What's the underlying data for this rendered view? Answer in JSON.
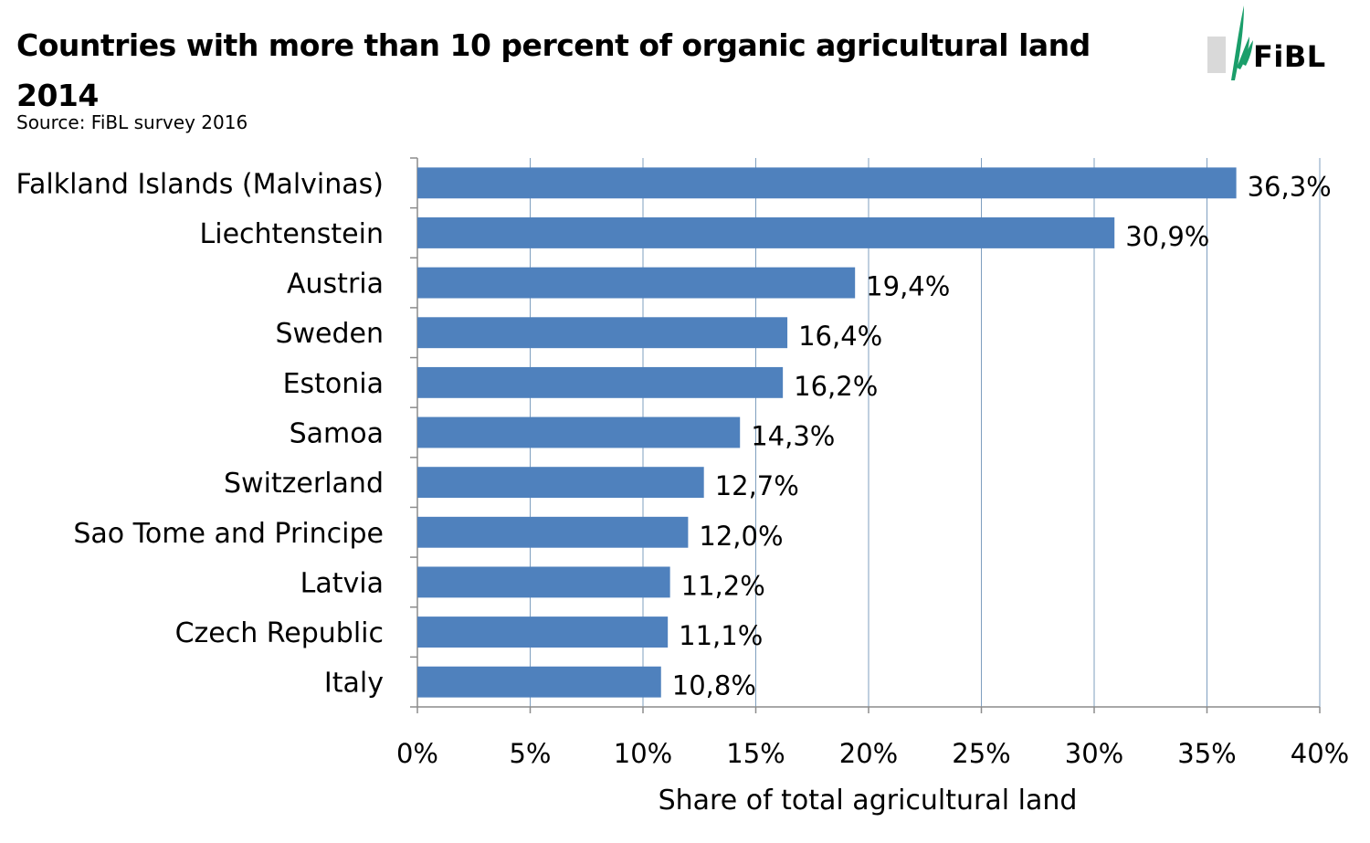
{
  "chart_data": {
    "type": "bar",
    "orientation": "horizontal",
    "title_line1": "Countries with more than 10 percent of organic agricultural land",
    "title_line2": "2014",
    "subtitle": "Source: FiBL survey 2016",
    "categories": [
      "Falkland Islands (Malvinas)",
      "Liechtenstein",
      "Austria",
      "Sweden",
      "Estonia",
      "Samoa",
      "Switzerland",
      "Sao Tome and Principe",
      "Latvia",
      "Czech Republic",
      "Italy"
    ],
    "values": [
      36.3,
      30.9,
      19.4,
      16.4,
      16.2,
      14.3,
      12.7,
      12.0,
      11.2,
      11.1,
      10.8
    ],
    "value_labels": [
      "36,3%",
      "30,9%",
      "19,4%",
      "16,4%",
      "16,2%",
      "14,3%",
      "12,7%",
      "12,0%",
      "11,2%",
      "11,1%",
      "10,8%"
    ],
    "xlabel": "Share of total agricultural land",
    "ylabel": "",
    "xlim": [
      0,
      40
    ],
    "x_ticks": [
      0,
      5,
      10,
      15,
      20,
      25,
      30,
      35,
      40
    ],
    "x_tick_labels": [
      "0%",
      "5%",
      "10%",
      "15%",
      "20%",
      "25%",
      "30%",
      "35%",
      "40%"
    ],
    "grid": true,
    "bar_color": "#4f81bd",
    "grid_color": "#7f9fbf"
  },
  "logo": {
    "text": "FiBL",
    "icon": "fibl-leaf-logo-icon",
    "color": "#1a9e6a"
  }
}
